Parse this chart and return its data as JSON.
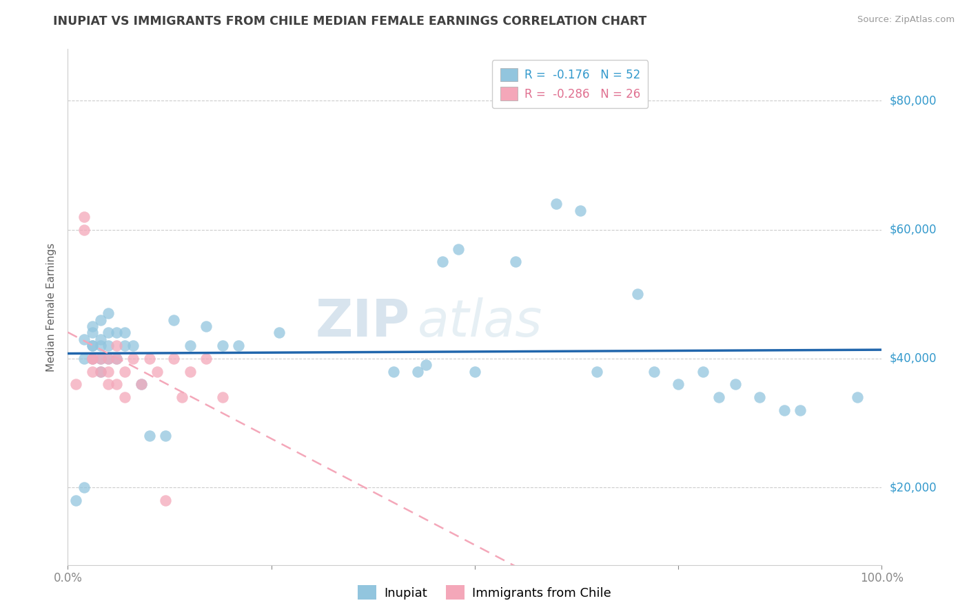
{
  "title": "INUPIAT VS IMMIGRANTS FROM CHILE MEDIAN FEMALE EARNINGS CORRELATION CHART",
  "source": "Source: ZipAtlas.com",
  "ylabel": "Median Female Earnings",
  "xlim": [
    0,
    1.0
  ],
  "ylim": [
    8000,
    88000
  ],
  "ytick_positions": [
    20000,
    40000,
    60000,
    80000
  ],
  "ytick_labels": [
    "$20,000",
    "$40,000",
    "$60,000",
    "$80,000"
  ],
  "inupiat_color": "#92c5de",
  "chile_color": "#f4a7b9",
  "inupiat_line_color": "#2166ac",
  "chile_line_color": "#f4a7b9",
  "inupiat_R": -0.176,
  "inupiat_N": 52,
  "chile_R": -0.286,
  "chile_N": 26,
  "legend_inupiat": "Inupiat",
  "legend_chile": "Immigrants from Chile",
  "watermark_zip": "ZIP",
  "watermark_atlas": "atlas",
  "inupiat_x": [
    0.01,
    0.02,
    0.02,
    0.02,
    0.03,
    0.03,
    0.03,
    0.03,
    0.03,
    0.04,
    0.04,
    0.04,
    0.04,
    0.04,
    0.05,
    0.05,
    0.05,
    0.05,
    0.06,
    0.06,
    0.07,
    0.07,
    0.08,
    0.09,
    0.1,
    0.12,
    0.13,
    0.15,
    0.17,
    0.19,
    0.21,
    0.26,
    0.4,
    0.43,
    0.44,
    0.46,
    0.48,
    0.5,
    0.55,
    0.6,
    0.63,
    0.65,
    0.7,
    0.72,
    0.75,
    0.78,
    0.8,
    0.82,
    0.85,
    0.88,
    0.9,
    0.97
  ],
  "inupiat_y": [
    18000,
    40000,
    43000,
    20000,
    42000,
    44000,
    40000,
    42000,
    45000,
    40000,
    42000,
    43000,
    38000,
    46000,
    40000,
    42000,
    44000,
    47000,
    40000,
    44000,
    42000,
    44000,
    42000,
    36000,
    28000,
    28000,
    46000,
    42000,
    45000,
    42000,
    42000,
    44000,
    38000,
    38000,
    39000,
    55000,
    57000,
    38000,
    55000,
    64000,
    63000,
    38000,
    50000,
    38000,
    36000,
    38000,
    34000,
    36000,
    34000,
    32000,
    32000,
    34000
  ],
  "chile_x": [
    0.01,
    0.02,
    0.02,
    0.03,
    0.03,
    0.03,
    0.04,
    0.04,
    0.05,
    0.05,
    0.05,
    0.06,
    0.06,
    0.06,
    0.07,
    0.07,
    0.08,
    0.09,
    0.1,
    0.11,
    0.12,
    0.13,
    0.14,
    0.15,
    0.17,
    0.19
  ],
  "chile_y": [
    36000,
    60000,
    62000,
    38000,
    40000,
    40000,
    38000,
    40000,
    36000,
    38000,
    40000,
    36000,
    40000,
    42000,
    34000,
    38000,
    40000,
    36000,
    40000,
    38000,
    18000,
    40000,
    34000,
    38000,
    40000,
    34000
  ],
  "background_color": "#ffffff",
  "grid_color": "#cccccc",
  "title_color": "#404040",
  "axis_label_color": "#606060",
  "right_label_color": "#3399cc",
  "source_color": "#999999"
}
